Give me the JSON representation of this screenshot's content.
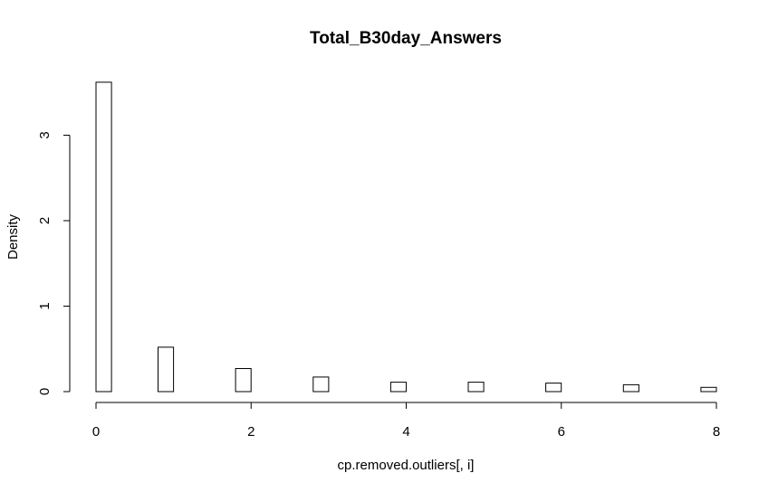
{
  "chart_data": {
    "type": "bar",
    "title": "Total_B30day_Answers",
    "xlabel": "cp.removed.outliers[, i]",
    "ylabel": "Density",
    "xlim": [
      0,
      8
    ],
    "ylim": [
      0,
      3.65
    ],
    "x_ticks": [
      0,
      2,
      4,
      6,
      8
    ],
    "y_ticks": [
      0,
      1,
      2,
      3
    ],
    "bin_width": 0.2,
    "bins": [
      {
        "x0": 0.0,
        "x1": 0.2,
        "density": 3.62
      },
      {
        "x0": 0.8,
        "x1": 1.0,
        "density": 0.52
      },
      {
        "x0": 1.8,
        "x1": 2.0,
        "density": 0.27
      },
      {
        "x0": 2.8,
        "x1": 3.0,
        "density": 0.17
      },
      {
        "x0": 3.8,
        "x1": 4.0,
        "density": 0.11
      },
      {
        "x0": 4.8,
        "x1": 5.0,
        "density": 0.11
      },
      {
        "x0": 5.8,
        "x1": 6.0,
        "density": 0.1
      },
      {
        "x0": 6.8,
        "x1": 7.0,
        "density": 0.08
      },
      {
        "x0": 7.8,
        "x1": 8.0,
        "density": 0.05
      }
    ],
    "grid": false,
    "legend": "none"
  }
}
